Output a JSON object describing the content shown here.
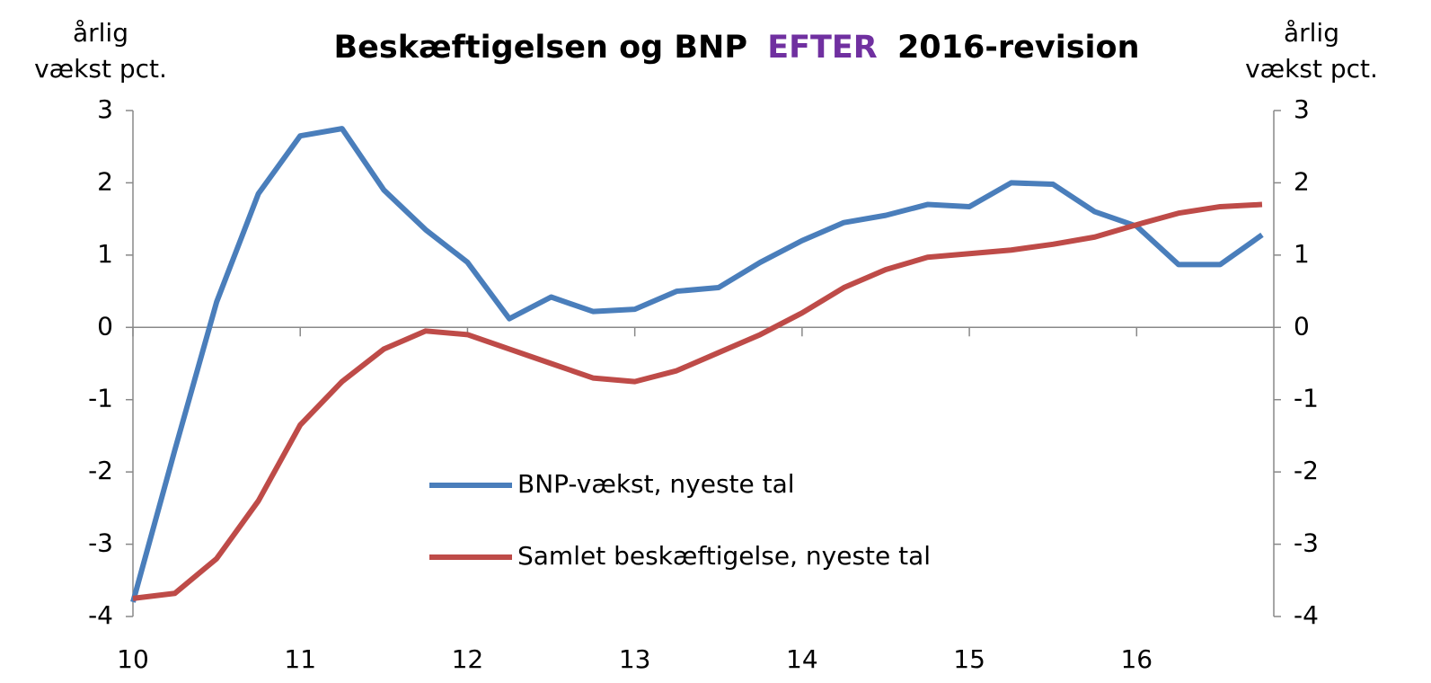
{
  "chart_data": {
    "type": "line",
    "title_parts": [
      "Beskæftigelsen og BNP",
      "EFTER",
      "2016-revision"
    ],
    "title_colors": [
      "#000000",
      "#7030a0",
      "#000000"
    ],
    "ylabel": [
      "årlig",
      "vækst pct."
    ],
    "y2label": [
      "årlig",
      "vækst pct."
    ],
    "x": [
      10,
      10.25,
      10.5,
      10.75,
      11,
      11.25,
      11.5,
      11.75,
      12,
      12.25,
      12.5,
      12.75,
      13,
      13.25,
      13.5,
      13.75,
      14,
      14.25,
      14.5,
      14.75,
      15,
      15.25,
      15.5,
      15.75,
      16,
      16.25,
      16.5,
      16.75
    ],
    "series": [
      {
        "name": "BNP-vækst, nyeste tal",
        "color": "#4a7ebb",
        "values": [
          -3.8,
          -1.7,
          0.35,
          1.85,
          2.65,
          2.75,
          1.9,
          1.35,
          0.9,
          0.12,
          0.42,
          0.22,
          0.25,
          0.5,
          0.55,
          0.9,
          1.2,
          1.45,
          1.55,
          1.7,
          1.67,
          2.0,
          1.98,
          1.6,
          1.4,
          0.87,
          0.87,
          1.28
        ]
      },
      {
        "name": "Samlet beskæftigelse, nyeste tal",
        "color": "#be4b48",
        "values": [
          -3.75,
          -3.68,
          -3.2,
          -2.4,
          -1.35,
          -0.75,
          -0.3,
          -0.05,
          -0.1,
          -0.3,
          -0.5,
          -0.7,
          -0.75,
          -0.6,
          -0.35,
          -0.1,
          0.2,
          0.55,
          0.8,
          0.97,
          1.02,
          1.07,
          1.15,
          1.25,
          1.42,
          1.58,
          1.67,
          1.7
        ]
      }
    ],
    "xlim": [
      10,
      16.82
    ],
    "xticks": [
      10,
      11,
      12,
      13,
      14,
      15,
      16
    ],
    "ylim": [
      -4,
      3
    ],
    "yticks": [
      -4,
      -3,
      -2,
      -1,
      0,
      1,
      2,
      3
    ],
    "y2lim": [
      -4,
      3
    ],
    "y2ticks": [
      -4,
      -3,
      -2,
      -1,
      0,
      1,
      2,
      3
    ]
  }
}
